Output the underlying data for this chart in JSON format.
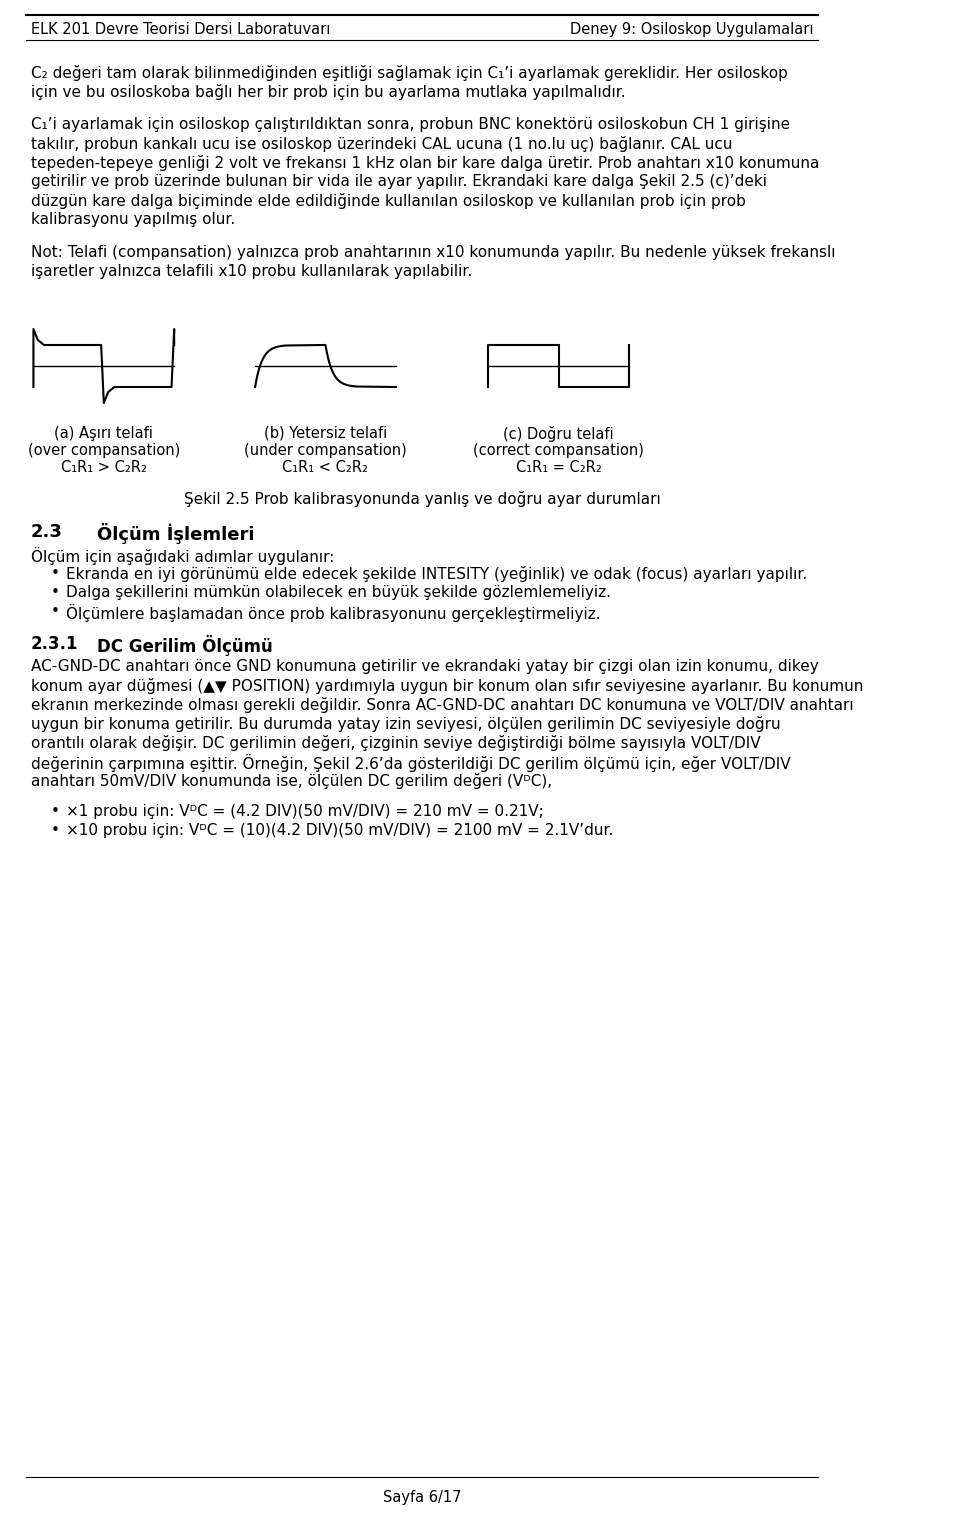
{
  "header_left": "ELK 201 Devre Teorisi Dersi Laboratuvarı",
  "header_right": "Deney 9: Osiloskop Uygulamaları",
  "bg_color": "#ffffff",
  "text_color": "#000000",
  "page_number": "Sayfa 6/17",
  "paragraph1": "C₂ değeri tam olarak bilinmediğinden eşitliği sağlamak için C₁’i ayarlamak gereklidir. Her osiloskop için ve bu osiloskoba bağlı her bir prob için bu ayarlama mutlaka yapılmalıdır.",
  "paragraph2": "C₁’i ayarlamak için osiloskop çalıştırıldıktan sonra, probun BNC konektörü osiloskobun CH 1 girişine takılır, probun kankalı ucu ise osiloskop üzerindeki CAL ucuna (1 no.lu uç) bağlanır. CAL ucu tepeden-tepeye genliği 2 volt ve frekansı 1 kHz olan bir kare dalga üretir. Prob anahtarı x10 konumuna getirilir ve prob üzerinde bulunan bir vida ile ayar yapılır. Ekrandaki kare dalga Şekil 2.5 (c)’deki düzgün kare dalga biçiminde elde edildiğinde kullanılan osiloskop ve kullanılan prob için prob kalibrasyonu yapılmış olur.",
  "note_text": "Not: Telafi (compansation) yalnızca prob anahtarının x10 konumunda yapılır. Bu nedenle yüksek frekanslı işaretler yalnızca telafili x10 probu kullanılarak yapılabilir.",
  "fig_caption": "Şekil 2.5 Prob kalibrasyonunda yanlış ve doğru ayar durumları",
  "label_a": "(a) Aşırı telafi",
  "label_a2": "(over compansation)",
  "label_a3": "C₁R₁ > C₂R₂",
  "label_b": "(b) Yetersiz telafi",
  "label_b2": "(under compansation)",
  "label_b3": "C₁R₁ < C₂R₂",
  "label_c": "(c) Doğru telafi",
  "label_c2": "(correct compansation)",
  "label_c3": "C₁R₁ = C₂R₂",
  "section_23": "2.3",
  "section_23_title": "Ölçüm İşlemleri",
  "section_23_intro": "Ölçüm için aşağıdaki adımlar uygulanır:",
  "bullet1": "Ekranda en iyi görünümü elde edecek şekilde INTESITY (yeğinlik) ve odak (focus) ayarları yapılır.",
  "bullet2": "Dalga şekillerini mümkün olabilecek en büyük şekilde gözlemlemeliyiz.",
  "bullet3": "Ölçümlere başlamadan önce prob kalibrasyonunu gerçekleştirmeliyiz.",
  "section_231": "2.3.1",
  "section_231_title": "DC Gerilim Ölçümü",
  "dc_paragraph": "AC-GND-DC anahtarı önce GND konumuna getirilir ve ekrandaki yatay bir çizgi olan izin konumu, dikey konum ayar düğmesi (▲▼ POSITION) yardımıyla uygun bir konum olan sıfır seviyesine ayarlanır. Bu konumun ekranın merkezinde olması gerekli değildir. Sonra AC-GND-DC anahtarı DC konumuna ve VOLT/DIV anahtarı uygun bir konuma getirilir. Bu durumda yatay izin seviyesi, ölçülen gerilimin DC seviyesiyle doğru orantılı olarak değişir. DC gerilimin değeri, çizginin seviye değiştirdiği bölme sayısıyla VOLT/DIV değerinin çarpımına eşittir. Örneğin, Şekil 2.6’da gösterildiği DC gerilim ölçümü için, eğer VOLT/DIV anahtarı 50mV/DIV konumunda ise, ölçülen DC gerilim değeri (VᴰC),",
  "bullet_dc1": "×1 probu için: VᴰC = (4.2 DIV)(50 mV/DIV) = 210 mV = 0.21V;",
  "bullet_dc2": "×10 probu için: VᴰC = (10)(4.2 DIV)(50 mV/DIV) = 2100 mV = 2.1V’dur."
}
